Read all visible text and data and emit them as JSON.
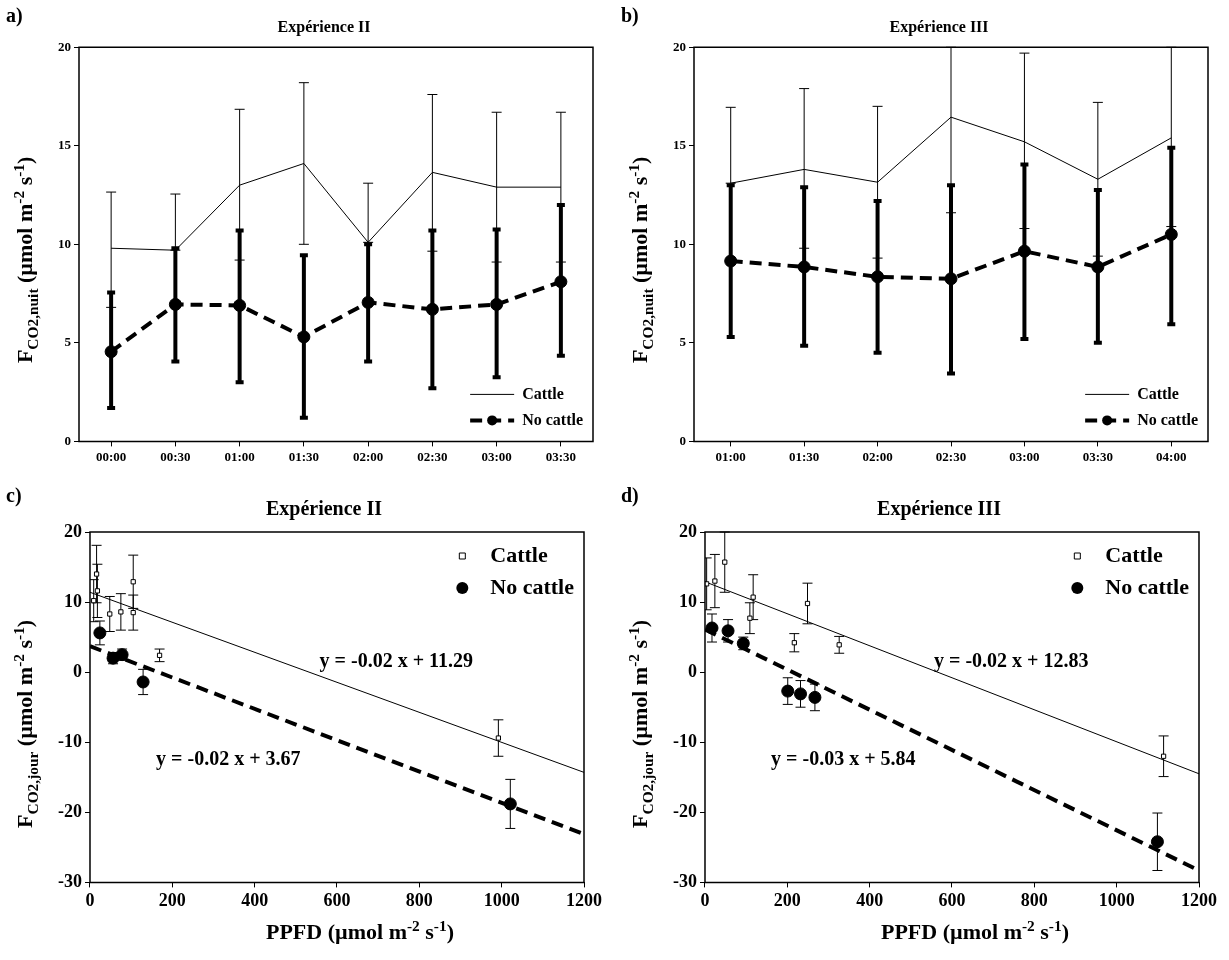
{
  "chart_data": [
    {
      "type": "line",
      "title": "Expérience II",
      "ylabel": "F$_{CO2,nuit}$ (µmol m$^{-2}$ s$^{-1}$)",
      "annotations": [
        "a)"
      ],
      "categories": [
        "00:00",
        "00:30",
        "01:00",
        "01:30",
        "02:00",
        "02:30",
        "03:00",
        "03:30"
      ],
      "ylim": [
        0,
        20
      ],
      "yticks": [
        0,
        5,
        10,
        15,
        20
      ],
      "grid": false,
      "legend": "bottom right",
      "series": [
        {
          "name": "Cattle",
          "color": "#000000",
          "marker": "none",
          "line_style": "solid",
          "values": [
            9.8,
            9.7,
            13.0,
            14.1,
            10.1,
            13.65,
            12.9,
            12.9
          ],
          "errors": [
            [
              6.8,
              12.65
            ],
            [
              9.7,
              12.55
            ],
            [
              9.2,
              16.85
            ],
            [
              10.0,
              18.2
            ],
            [
              10.1,
              13.1
            ],
            [
              9.65,
              17.6
            ],
            [
              9.1,
              16.7
            ],
            [
              9.1,
              16.7
            ]
          ]
        },
        {
          "name": "No cattle",
          "color": "#000000",
          "marker": "circle",
          "line_style": "dashed",
          "values": [
            4.55,
            6.95,
            6.9,
            5.3,
            7.05,
            6.7,
            6.95,
            8.1
          ],
          "errors": [
            [
              1.7,
              7.55
            ],
            [
              4.05,
              9.8
            ],
            [
              3.0,
              10.7
            ],
            [
              1.2,
              9.45
            ],
            [
              4.05,
              10.0
            ],
            [
              2.7,
              10.7
            ],
            [
              3.25,
              10.75
            ],
            [
              4.35,
              12.0
            ]
          ]
        }
      ]
    },
    {
      "type": "line",
      "title": "Expérience III",
      "ylabel": "F$_{CO2,nuit}$ (µmol m$^{-2}$ s$^{-1}$)",
      "annotations": [
        "b)"
      ],
      "categories": [
        "01:00",
        "01:30",
        "02:00",
        "02:30",
        "03:00",
        "03:30",
        "04:00"
      ],
      "ylim": [
        0,
        20
      ],
      "yticks": [
        0,
        5,
        10,
        15,
        20
      ],
      "grid": false,
      "legend": "bottom right",
      "series": [
        {
          "name": "Cattle",
          "color": "#000000",
          "marker": "none",
          "line_style": "solid",
          "values": [
            13.1,
            13.8,
            13.15,
            16.45,
            15.2,
            13.3,
            15.4
          ],
          "errors": [
            [
              13.1,
              16.95
            ],
            [
              9.8,
              17.9
            ],
            [
              9.3,
              17.0
            ],
            [
              11.6,
              20
            ],
            [
              10.8,
              19.7
            ],
            [
              9.4,
              17.2
            ],
            [
              10.9,
              20
            ]
          ]
        },
        {
          "name": "No cattle",
          "color": "#000000",
          "marker": "circle",
          "line_style": "dashed",
          "values": [
            9.15,
            8.85,
            8.35,
            8.25,
            9.65,
            8.85,
            10.5
          ],
          "errors": [
            [
              5.3,
              13.0
            ],
            [
              4.85,
              12.9
            ],
            [
              4.5,
              12.2
            ],
            [
              3.45,
              13.0
            ],
            [
              5.2,
              14.05
            ],
            [
              5.0,
              12.75
            ],
            [
              5.95,
              14.9
            ]
          ]
        }
      ]
    },
    {
      "type": "scatter",
      "title": "Expérience II",
      "ylabel": "F$_{CO2,jour}$ (µmol m$^{-2}$ s$^{-1}$)",
      "xlabel": "PPFD (µmol m$^{-2}$ s$^{-1}$)",
      "xlim": [
        0,
        1200
      ],
      "xticks": [
        0,
        200,
        400,
        600,
        800,
        1000,
        1200
      ],
      "ylim": [
        -30,
        20
      ],
      "yticks": [
        -30,
        -20,
        -10,
        0,
        10,
        20
      ],
      "grid": false,
      "legend": "top right",
      "annotations": [
        "c)",
        "y = -0.02 x + 11.29",
        "y = -0.02 x + 3.67"
      ],
      "series": [
        {
          "name": "Cattle",
          "color": "#000000",
          "marker": "square",
          "x": [
            9,
            16,
            18,
            48,
            75,
            105,
            105,
            169,
            992
          ],
          "values": [
            10.2,
            14.0,
            11.6,
            8.3,
            8.6,
            12.9,
            8.5,
            2.4,
            -9.4
          ],
          "errors": [
            3.0,
            4.1,
            3.8,
            2.5,
            2.6,
            3.8,
            2.5,
            0.9,
            2.6
          ]
        },
        {
          "name": "No cattle",
          "color": "#000000",
          "marker": "circle",
          "x": [
            24,
            56,
            78,
            129,
            1021
          ],
          "values": [
            5.6,
            2.0,
            2.5,
            -1.4,
            -18.8
          ],
          "errors": [
            1.7,
            0.8,
            0.8,
            1.8,
            3.5
          ]
        },
        {
          "type": "line",
          "color": "#000000",
          "marker": "none",
          "line_style": "solid",
          "x": [
            0,
            1200
          ],
          "values": [
            11.4,
            -14.3
          ]
        },
        {
          "type": "line",
          "color": "#000000",
          "marker": "none",
          "line_style": "dashed",
          "x": [
            0,
            1200
          ],
          "values": [
            3.7,
            -23.1
          ]
        }
      ]
    },
    {
      "type": "scatter",
      "title": "Expérience III",
      "ylabel": "F$_{CO2,jour}$ (µmol m$^{-2}$ s$^{-1}$)",
      "xlabel": "PPFD (µmol m$^{-2}$ s$^{-1}$)",
      "xlim": [
        0,
        1200
      ],
      "xticks": [
        0,
        200,
        400,
        600,
        800,
        1000,
        1200
      ],
      "ylim": [
        -30,
        20
      ],
      "yticks": [
        -30,
        -20,
        -10,
        0,
        10,
        20
      ],
      "grid": false,
      "legend": "top right",
      "annotations": [
        "d)",
        "y = -0.02 x + 12.83",
        "y = -0.03 x + 5.84"
      ],
      "series": [
        {
          "name": "Cattle",
          "color": "#000000",
          "marker": "square",
          "x": [
            4,
            24,
            48,
            109,
            117,
            217,
            249,
            326,
            1114
          ],
          "values": [
            12.6,
            13.0,
            15.7,
            7.7,
            10.7,
            4.2,
            9.8,
            3.9,
            -12.0
          ],
          "errors": [
            3.7,
            3.8,
            4.3,
            2.2,
            3.2,
            1.3,
            2.9,
            1.2,
            2.9
          ]
        },
        {
          "name": "No cattle",
          "color": "#000000",
          "marker": "circle",
          "x": [
            17,
            56,
            93,
            201,
            232,
            267,
            1099
          ],
          "values": [
            6.3,
            5.9,
            4.1,
            -2.7,
            -3.1,
            -3.6,
            -24.2
          ],
          "errors": [
            2.0,
            1.6,
            0.9,
            1.9,
            1.9,
            1.9,
            4.1
          ]
        },
        {
          "type": "line",
          "color": "#000000",
          "marker": "none",
          "line_style": "solid",
          "x": [
            0,
            1200
          ],
          "values": [
            12.9,
            -14.5
          ]
        },
        {
          "type": "line",
          "color": "#000000",
          "marker": "none",
          "line_style": "dashed",
          "x": [
            0,
            1200
          ],
          "values": [
            6.1,
            -28.3
          ]
        }
      ]
    }
  ]
}
